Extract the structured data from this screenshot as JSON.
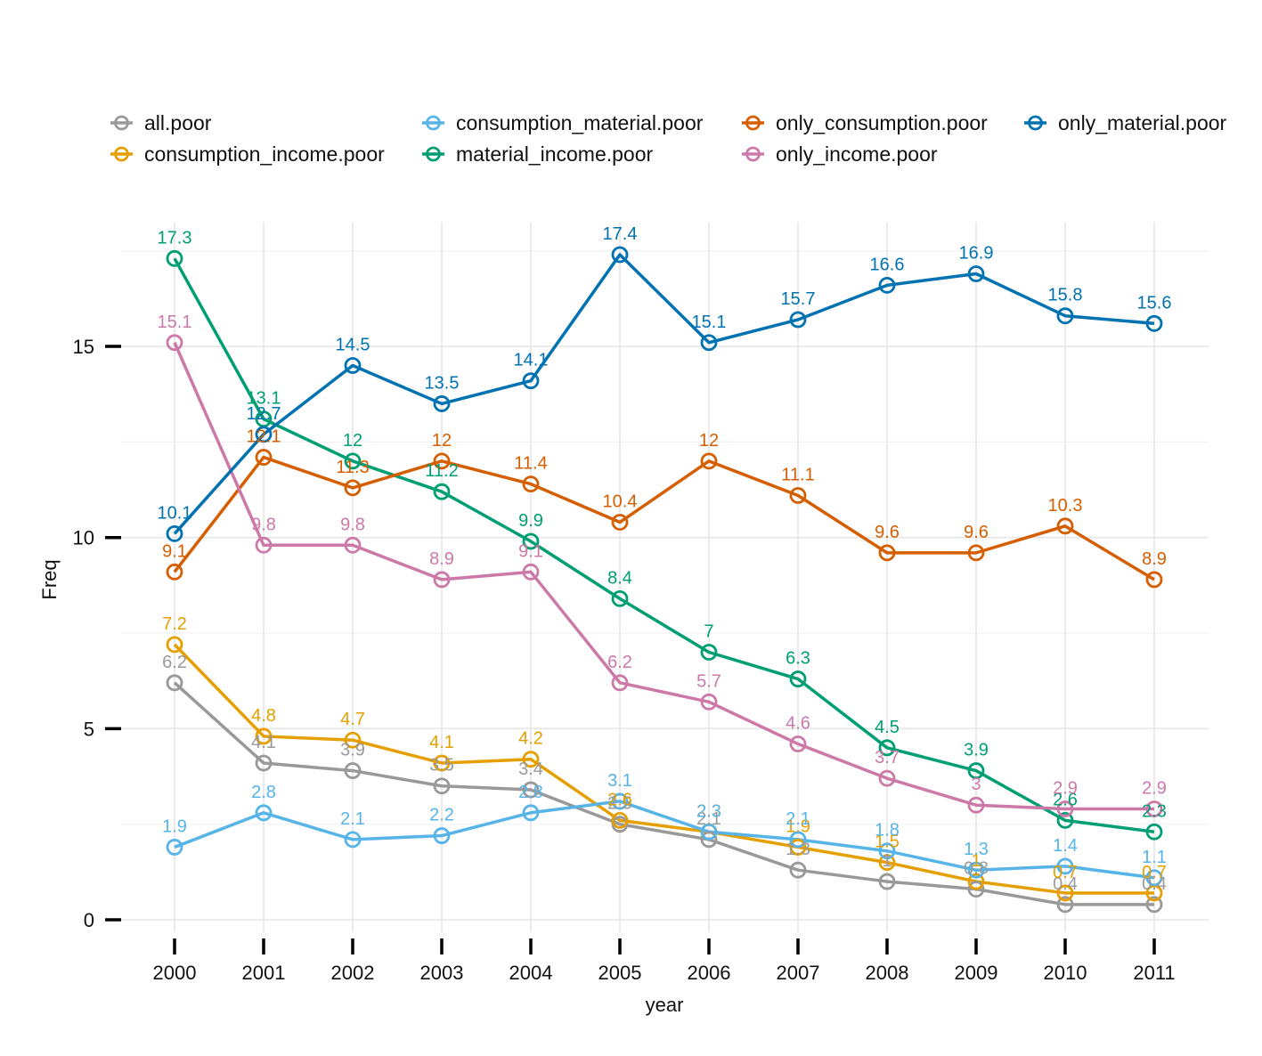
{
  "chart_data": {
    "type": "line",
    "xlabel": "year",
    "ylabel": "Freq",
    "categories": [
      "2000",
      "2001",
      "2002",
      "2003",
      "2004",
      "2005",
      "2006",
      "2007",
      "2008",
      "2009",
      "2010",
      "2011"
    ],
    "ylim": [
      -0.3,
      18.0
    ],
    "yticks": [
      0,
      5,
      10,
      15
    ],
    "grid": true,
    "legend_position": "top",
    "series": [
      {
        "name": "all.poor",
        "color": "#999999",
        "values": [
          6.2,
          4.1,
          3.9,
          3.5,
          3.4,
          2.5,
          2.1,
          1.3,
          1.0,
          0.8,
          0.4,
          0.4
        ],
        "labels": [
          "6.2",
          "4.1",
          "3.9",
          "3.5",
          "3.4",
          "2.5",
          "2.1",
          "1.3",
          "1",
          "0.8",
          "0.4",
          "0.4"
        ]
      },
      {
        "name": "consumption_income.poor",
        "color": "#E69F00",
        "values": [
          7.2,
          4.8,
          4.7,
          4.1,
          4.2,
          2.6,
          2.3,
          1.9,
          1.5,
          1.0,
          0.7,
          0.7
        ],
        "labels": [
          "7.2",
          "4.8",
          "4.7",
          "4.1",
          "4.2",
          "2.6",
          "2.3",
          "1.9",
          "1.5",
          "1",
          "0.7",
          "0.7"
        ]
      },
      {
        "name": "consumption_material.poor",
        "color": "#56B4E9",
        "values": [
          1.9,
          2.8,
          2.1,
          2.2,
          2.8,
          3.1,
          2.3,
          2.1,
          1.8,
          1.3,
          1.4,
          1.1
        ],
        "labels": [
          "1.9",
          "2.8",
          "2.1",
          "2.2",
          "2.8",
          "3.1",
          "2.3",
          "2.1",
          "1.8",
          "1.3",
          "1.4",
          "1.1"
        ]
      },
      {
        "name": "material_income.poor",
        "color": "#009E73",
        "values": [
          17.3,
          13.1,
          12.0,
          11.2,
          9.9,
          8.4,
          7.0,
          6.3,
          4.5,
          3.9,
          2.6,
          2.3
        ],
        "labels": [
          "17.3",
          "13.1",
          "12",
          "11.2",
          "9.9",
          "8.4",
          "7",
          "6.3",
          "4.5",
          "3.9",
          "2.6",
          "2.3"
        ]
      },
      {
        "name": "only_consumption.poor",
        "color": "#D55E00",
        "values": [
          9.1,
          12.1,
          11.3,
          12.0,
          11.4,
          10.4,
          12.0,
          11.1,
          9.6,
          9.6,
          10.3,
          8.9
        ],
        "labels": [
          "9.1",
          "12.1",
          "11.3",
          "12",
          "11.4",
          "10.4",
          "12",
          "11.1",
          "9.6",
          "9.6",
          "10.3",
          "8.9"
        ]
      },
      {
        "name": "only_income.poor",
        "color": "#CC79A7",
        "values": [
          15.1,
          9.8,
          9.8,
          8.9,
          9.1,
          6.2,
          5.7,
          4.6,
          3.7,
          3.0,
          2.9,
          2.9
        ],
        "labels": [
          "15.1",
          "9.8",
          "9.8",
          "8.9",
          "9.1",
          "6.2",
          "5.7",
          "4.6",
          "3.7",
          "3",
          "2.9",
          "2.9"
        ]
      },
      {
        "name": "only_material.poor",
        "color": "#0072B2",
        "values": [
          10.1,
          12.7,
          14.5,
          13.5,
          14.1,
          17.4,
          15.1,
          15.7,
          16.6,
          16.9,
          15.8,
          15.6
        ],
        "labels": [
          "10.1",
          "12.7",
          "14.5",
          "13.5",
          "14.1",
          "17.4",
          "15.1",
          "15.7",
          "16.6",
          "16.9",
          "15.8",
          "15.6"
        ]
      }
    ],
    "legend_order": [
      [
        "all.poor",
        "consumption_material.poor",
        "only_consumption.poor",
        "only_material.poor"
      ],
      [
        "consumption_income.poor",
        "material_income.poor",
        "only_income.poor"
      ]
    ]
  }
}
